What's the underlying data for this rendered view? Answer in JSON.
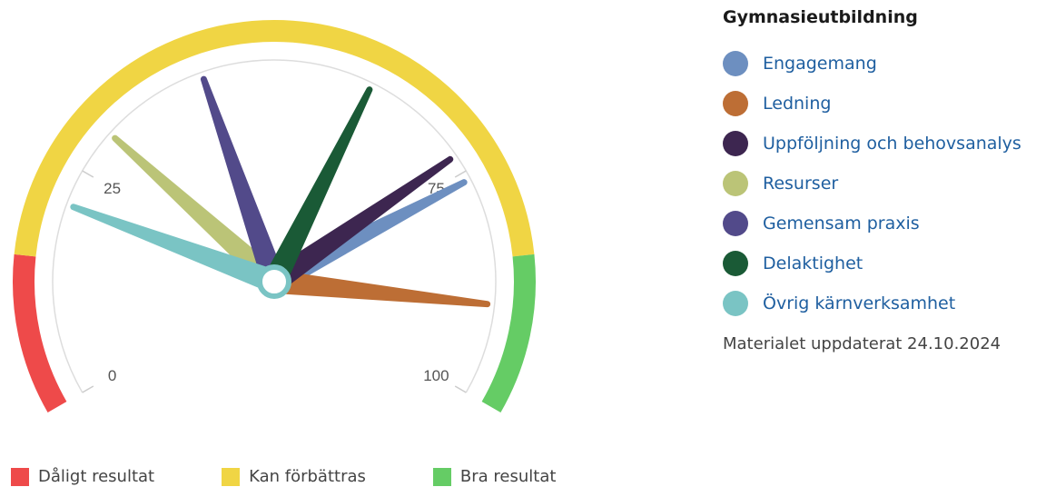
{
  "chart_data": {
    "type": "gauge",
    "title": "",
    "min": 0,
    "max": 100,
    "tick_labels": [
      "0",
      "25",
      "75",
      "100"
    ],
    "ticks": [
      0,
      25,
      75,
      100
    ],
    "bands": [
      {
        "from": 0,
        "to": 15,
        "color": "#ee4a4a"
      },
      {
        "from": 15,
        "to": 85,
        "color": "#f0d544"
      },
      {
        "from": 85,
        "to": 100,
        "color": "#65cc65"
      }
    ],
    "series": [
      {
        "name": "Engagemang",
        "value": 76,
        "color": "#6d8fc0"
      },
      {
        "name": "Ledning",
        "value": 90,
        "color": "#bd6e35"
      },
      {
        "name": "Uppföljning och behovsanalys",
        "value": 73,
        "color": "#3d2650"
      },
      {
        "name": "Resurser",
        "value": 30,
        "color": "#bbc477"
      },
      {
        "name": "Gemensam praxis",
        "value": 42,
        "color": "#524a8a"
      },
      {
        "name": "Delaktighet",
        "value": 61,
        "color": "#1a5a36"
      },
      {
        "name": "Övrig kärnverksamhet",
        "value": 21,
        "color": "#7ac4c4"
      }
    ]
  },
  "legend": {
    "title": "Gymnasieutbildning",
    "items": [
      "Engagemang",
      "Ledning",
      "Uppföljning och behovsanalys",
      "Resurser",
      "Gemensam praxis",
      "Delaktighet",
      "Övrig kärnverksamhet"
    ]
  },
  "updated_text": "Materialet uppdaterat 24.10.2024",
  "band_legend": [
    {
      "label": "Dåligt resultat",
      "color": "#ee4a4a"
    },
    {
      "label": "Kan förbättras",
      "color": "#f0d544"
    },
    {
      "label": "Bra resultat",
      "color": "#65cc65"
    }
  ]
}
